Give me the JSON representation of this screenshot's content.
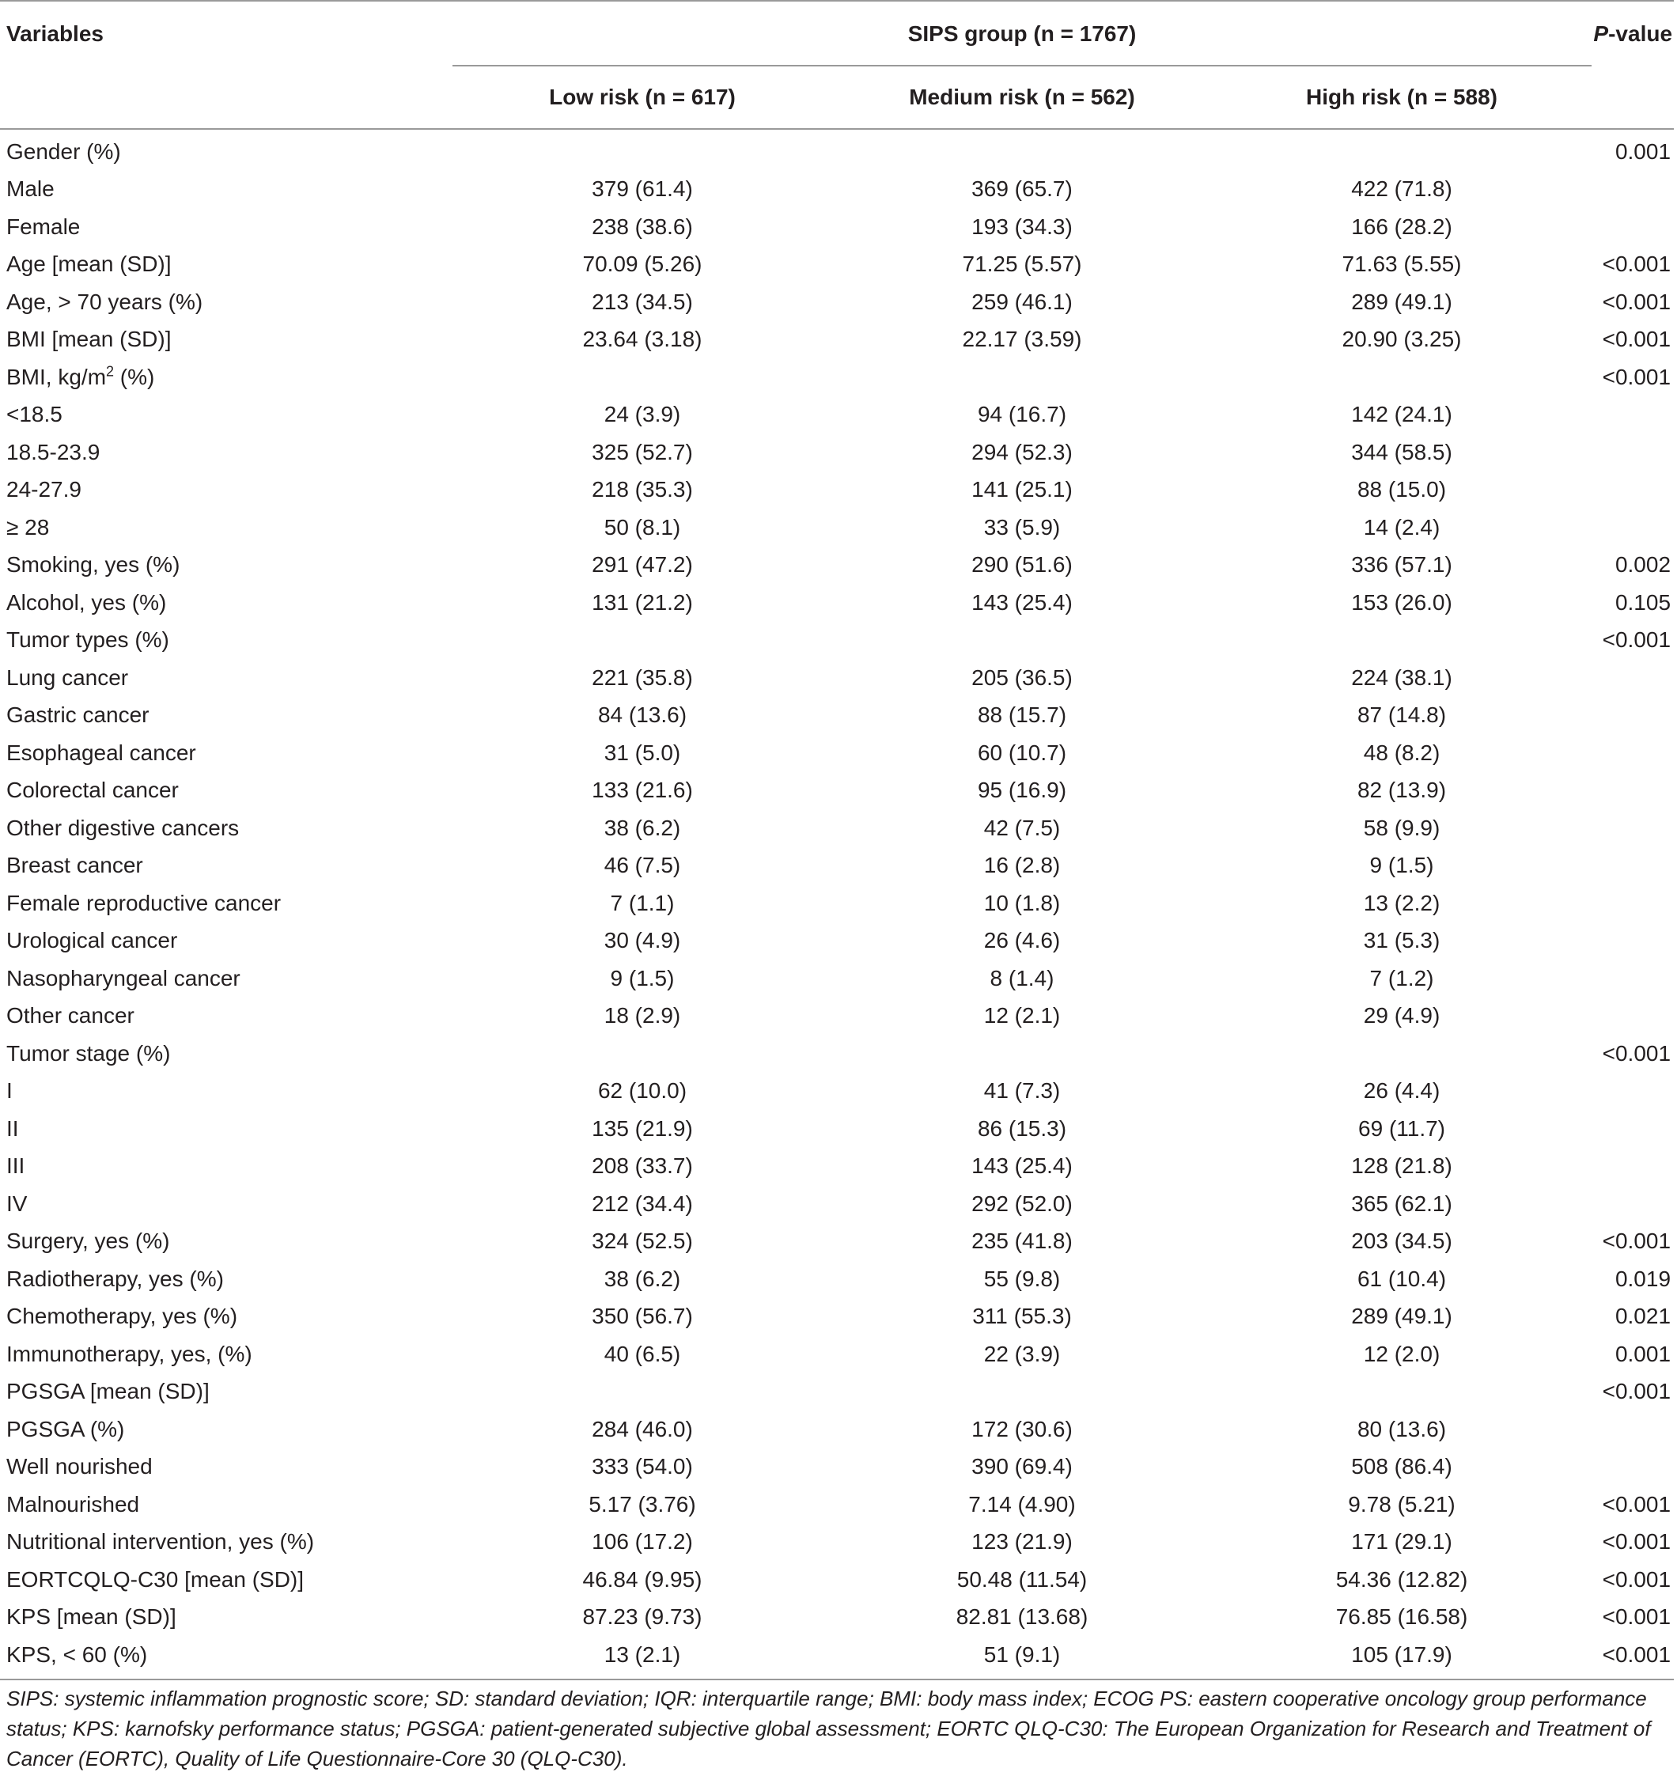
{
  "header": {
    "variables": "Variables",
    "group": "SIPS group (n = 1767)",
    "pvalue_italic": "P",
    "pvalue_rest": "-value",
    "low": "Low risk (n = 617)",
    "medium": "Medium risk (n = 562)",
    "high": "High risk (n = 588)"
  },
  "rows": [
    {
      "label": "Gender (%)",
      "low": "",
      "medium": "",
      "high": "",
      "p": "0.001"
    },
    {
      "label": "Male",
      "low": "379 (61.4)",
      "medium": "369 (65.7)",
      "high": "422 (71.8)",
      "p": ""
    },
    {
      "label": "Female",
      "low": "238 (38.6)",
      "medium": "193 (34.3)",
      "high": "166 (28.2)",
      "p": ""
    },
    {
      "label": "Age [mean (SD)]",
      "low": "70.09 (5.26)",
      "medium": "71.25 (5.57)",
      "high": "71.63 (5.55)",
      "p": "<0.001"
    },
    {
      "label": "Age, > 70 years (%)",
      "low": "213 (34.5)",
      "medium": "259 (46.1)",
      "high": "289 (49.1)",
      "p": "<0.001"
    },
    {
      "label": "BMI [mean (SD)]",
      "low": "23.64 (3.18)",
      "medium": "22.17 (3.59)",
      "high": "20.90 (3.25)",
      "p": "<0.001"
    },
    {
      "label": "BMI, kg/m",
      "sup": "2",
      "label_tail": " (%)",
      "low": "",
      "medium": "",
      "high": "",
      "p": "<0.001"
    },
    {
      "label": "<18.5",
      "low": "24 (3.9)",
      "medium": "94 (16.7)",
      "high": "142 (24.1)",
      "p": ""
    },
    {
      "label": "18.5-23.9",
      "low": "325 (52.7)",
      "medium": "294 (52.3)",
      "high": "344 (58.5)",
      "p": ""
    },
    {
      "label": "24-27.9",
      "low": "218 (35.3)",
      "medium": "141 (25.1)",
      "high": "88 (15.0)",
      "p": ""
    },
    {
      "label": "≥ 28",
      "low": "50 (8.1)",
      "medium": "33 (5.9)",
      "high": "14 (2.4)",
      "p": ""
    },
    {
      "label": "Smoking, yes (%)",
      "low": "291 (47.2)",
      "medium": "290 (51.6)",
      "high": "336 (57.1)",
      "p": "0.002"
    },
    {
      "label": "Alcohol, yes (%)",
      "low": "131 (21.2)",
      "medium": "143 (25.4)",
      "high": "153 (26.0)",
      "p": "0.105"
    },
    {
      "label": "Tumor types (%)",
      "low": "",
      "medium": "",
      "high": "",
      "p": "<0.001"
    },
    {
      "label": "Lung cancer",
      "low": "221 (35.8)",
      "medium": "205 (36.5)",
      "high": "224 (38.1)",
      "p": ""
    },
    {
      "label": "Gastric cancer",
      "low": "84 (13.6)",
      "medium": "88 (15.7)",
      "high": "87 (14.8)",
      "p": ""
    },
    {
      "label": "Esophageal cancer",
      "low": "31 (5.0)",
      "medium": "60 (10.7)",
      "high": "48 (8.2)",
      "p": ""
    },
    {
      "label": "Colorectal cancer",
      "low": "133 (21.6)",
      "medium": "95 (16.9)",
      "high": "82 (13.9)",
      "p": ""
    },
    {
      "label": "Other digestive cancers",
      "low": "38 (6.2)",
      "medium": "42 (7.5)",
      "high": "58 (9.9)",
      "p": ""
    },
    {
      "label": "Breast cancer",
      "low": "46 (7.5)",
      "medium": "16 (2.8)",
      "high": "9 (1.5)",
      "p": ""
    },
    {
      "label": "Female reproductive cancer",
      "low": "7 (1.1)",
      "medium": "10 (1.8)",
      "high": "13 (2.2)",
      "p": ""
    },
    {
      "label": "Urological cancer",
      "low": "30 (4.9)",
      "medium": "26 (4.6)",
      "high": "31 (5.3)",
      "p": ""
    },
    {
      "label": "Nasopharyngeal cancer",
      "low": "9 (1.5)",
      "medium": "8 (1.4)",
      "high": "7 (1.2)",
      "p": ""
    },
    {
      "label": "Other cancer",
      "low": "18 (2.9)",
      "medium": "12 (2.1)",
      "high": "29 (4.9)",
      "p": ""
    },
    {
      "label": "Tumor stage (%)",
      "low": "",
      "medium": "",
      "high": "",
      "p": "<0.001"
    },
    {
      "label": "I",
      "low": "62 (10.0)",
      "medium": "41 (7.3)",
      "high": "26 (4.4)",
      "p": ""
    },
    {
      "label": "II",
      "low": "135 (21.9)",
      "medium": "86 (15.3)",
      "high": "69 (11.7)",
      "p": ""
    },
    {
      "label": "III",
      "low": "208 (33.7)",
      "medium": "143 (25.4)",
      "high": "128 (21.8)",
      "p": ""
    },
    {
      "label": "IV",
      "low": "212 (34.4)",
      "medium": "292 (52.0)",
      "high": "365 (62.1)",
      "p": ""
    },
    {
      "label": "Surgery, yes (%)",
      "low": "324 (52.5)",
      "medium": "235 (41.8)",
      "high": "203 (34.5)",
      "p": "<0.001"
    },
    {
      "label": "Radiotherapy, yes (%)",
      "low": "38 (6.2)",
      "medium": "55 (9.8)",
      "high": "61 (10.4)",
      "p": "0.019"
    },
    {
      "label": "Chemotherapy, yes (%)",
      "low": "350 (56.7)",
      "medium": "311 (55.3)",
      "high": "289 (49.1)",
      "p": "0.021"
    },
    {
      "label": "Immunotherapy, yes, (%)",
      "low": "40 (6.5)",
      "medium": "22 (3.9)",
      "high": "12 (2.0)",
      "p": "0.001"
    },
    {
      "label": "PGSGA [mean (SD)]",
      "low": "",
      "medium": "",
      "high": "",
      "p": "<0.001"
    },
    {
      "label": "PGSGA (%)",
      "low": "284 (46.0)",
      "medium": "172 (30.6)",
      "high": "80 (13.6)",
      "p": ""
    },
    {
      "label": "Well nourished",
      "low": "333 (54.0)",
      "medium": "390 (69.4)",
      "high": "508 (86.4)",
      "p": ""
    },
    {
      "label": "Malnourished",
      "low": "5.17 (3.76)",
      "medium": "7.14 (4.90)",
      "high": "9.78 (5.21)",
      "p": "<0.001"
    },
    {
      "label": "Nutritional intervention, yes (%)",
      "low": "106 (17.2)",
      "medium": "123 (21.9)",
      "high": "171 (29.1)",
      "p": "<0.001"
    },
    {
      "label": "EORTCQLQ-C30 [mean (SD)]",
      "low": "46.84 (9.95)",
      "medium": "50.48 (11.54)",
      "high": "54.36 (12.82)",
      "p": "<0.001"
    },
    {
      "label": "KPS [mean (SD)]",
      "low": "87.23 (9.73)",
      "medium": "82.81 (13.68)",
      "high": "76.85 (16.58)",
      "p": "<0.001"
    },
    {
      "label": "KPS, < 60 (%)",
      "low": "13 (2.1)",
      "medium": "51 (9.1)",
      "high": "105 (17.9)",
      "p": "<0.001"
    }
  ],
  "footnote": "SIPS: systemic inflammation prognostic score; SD: standard deviation; IQR: interquartile range; BMI: body mass index; ECOG PS: eastern cooperative oncology group performance status; KPS: karnofsky performance status; PGSGA: patient-generated subjective global assessment; EORTC QLQ-C30: The European Organization for Research and Treatment of Cancer (EORTC), Quality of Life Questionnaire-Core 30 (QLQ-C30)."
}
